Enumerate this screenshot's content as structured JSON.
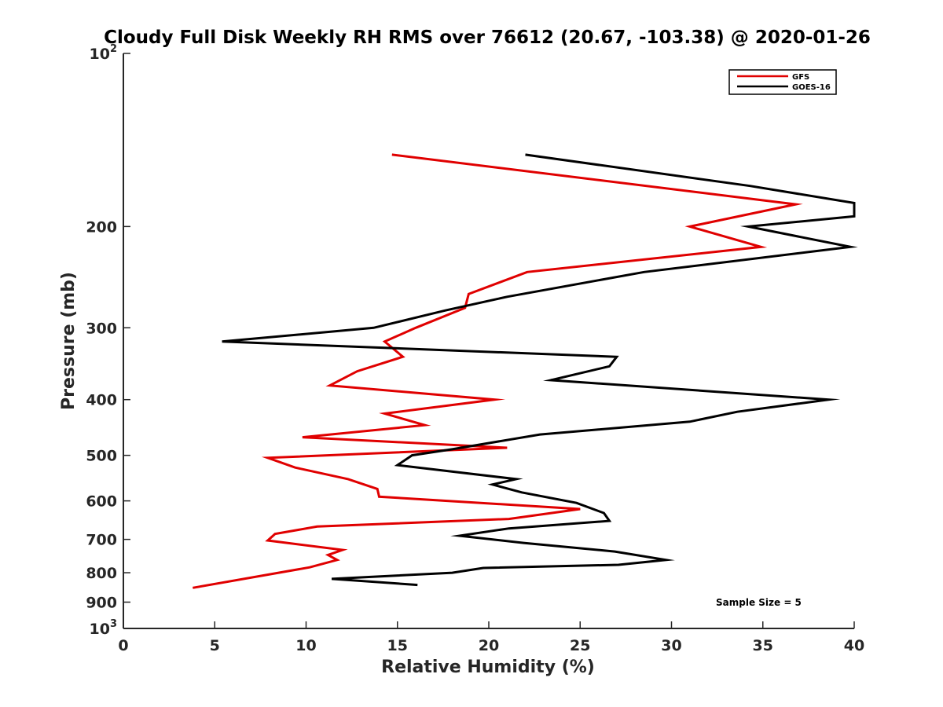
{
  "chart_data": {
    "type": "line",
    "title": "Cloudy Full Disk Weekly RH RMS over 76612 (20.67, -103.38) @ 2020-01-26",
    "xlabel": "Relative Humidity (%)",
    "ylabel": "Pressure (mb)",
    "xlim": [
      0,
      40
    ],
    "ylim": [
      100,
      1000
    ],
    "yscale": "log",
    "yreverse": true,
    "x_ticks": [
      0,
      5,
      10,
      15,
      20,
      25,
      30,
      35,
      40
    ],
    "x_tick_labels": [
      "0",
      "5",
      "10",
      "15",
      "20",
      "25",
      "30",
      "35",
      "40"
    ],
    "y_ticks": [
      100,
      200,
      300,
      400,
      500,
      600,
      700,
      800,
      900,
      1000
    ],
    "y_tick_labels": [
      {
        "base": "10",
        "exp": "2"
      },
      {
        "base": "200",
        "exp": ""
      },
      {
        "base": "300",
        "exp": ""
      },
      {
        "base": "400",
        "exp": ""
      },
      {
        "base": "500",
        "exp": ""
      },
      {
        "base": "600",
        "exp": ""
      },
      {
        "base": "700",
        "exp": ""
      },
      {
        "base": "800",
        "exp": ""
      },
      {
        "base": "900",
        "exp": ""
      },
      {
        "base": "10",
        "exp": "3"
      }
    ],
    "legend_position": "top-right",
    "annotation": "Sample Size = 5",
    "series": [
      {
        "name": "GFS",
        "color": "#e00000",
        "points": [
          [
            14.7,
            150
          ],
          [
            36.8,
            183
          ],
          [
            31.0,
            200
          ],
          [
            34.9,
            217
          ],
          [
            22.1,
            240
          ],
          [
            18.9,
            262
          ],
          [
            18.7,
            277
          ],
          [
            16.0,
            300
          ],
          [
            14.3,
            317
          ],
          [
            15.3,
            337
          ],
          [
            12.8,
            357
          ],
          [
            11.3,
            378
          ],
          [
            20.3,
            400
          ],
          [
            14.3,
            423
          ],
          [
            16.5,
            443
          ],
          [
            9.8,
            465
          ],
          [
            21.0,
            485
          ],
          [
            7.9,
            505
          ],
          [
            9.4,
            525
          ],
          [
            12.3,
            550
          ],
          [
            13.9,
            572
          ],
          [
            14.0,
            590
          ],
          [
            25.0,
            620
          ],
          [
            21.1,
            645
          ],
          [
            10.6,
            665
          ],
          [
            8.3,
            685
          ],
          [
            7.9,
            703
          ],
          [
            12.0,
            730
          ],
          [
            11.2,
            745
          ],
          [
            11.7,
            760
          ],
          [
            10.2,
            783
          ],
          [
            3.8,
            850
          ]
        ]
      },
      {
        "name": "GOES-16",
        "color": "#000000",
        "points": [
          [
            22.0,
            150
          ],
          [
            34.3,
            170
          ],
          [
            40.0,
            182
          ],
          [
            40.0,
            192
          ],
          [
            34.2,
            200
          ],
          [
            39.8,
            217
          ],
          [
            28.5,
            240
          ],
          [
            21.0,
            265
          ],
          [
            17.6,
            280
          ],
          [
            13.7,
            300
          ],
          [
            5.4,
            317
          ],
          [
            27.0,
            337
          ],
          [
            26.6,
            350
          ],
          [
            23.4,
            370
          ],
          [
            38.6,
            400
          ],
          [
            33.6,
            420
          ],
          [
            31.0,
            437
          ],
          [
            22.8,
            460
          ],
          [
            18.0,
            488
          ],
          [
            15.8,
            500
          ],
          [
            15.0,
            520
          ],
          [
            21.5,
            550
          ],
          [
            20.2,
            562
          ],
          [
            21.8,
            580
          ],
          [
            24.8,
            605
          ],
          [
            26.3,
            630
          ],
          [
            26.6,
            650
          ],
          [
            21.1,
            670
          ],
          [
            18.4,
            690
          ],
          [
            21.9,
            710
          ],
          [
            26.9,
            735
          ],
          [
            29.7,
            760
          ],
          [
            27.1,
            775
          ],
          [
            19.7,
            785
          ],
          [
            18.0,
            800
          ],
          [
            11.4,
            820
          ],
          [
            16.1,
            840
          ]
        ]
      }
    ]
  }
}
